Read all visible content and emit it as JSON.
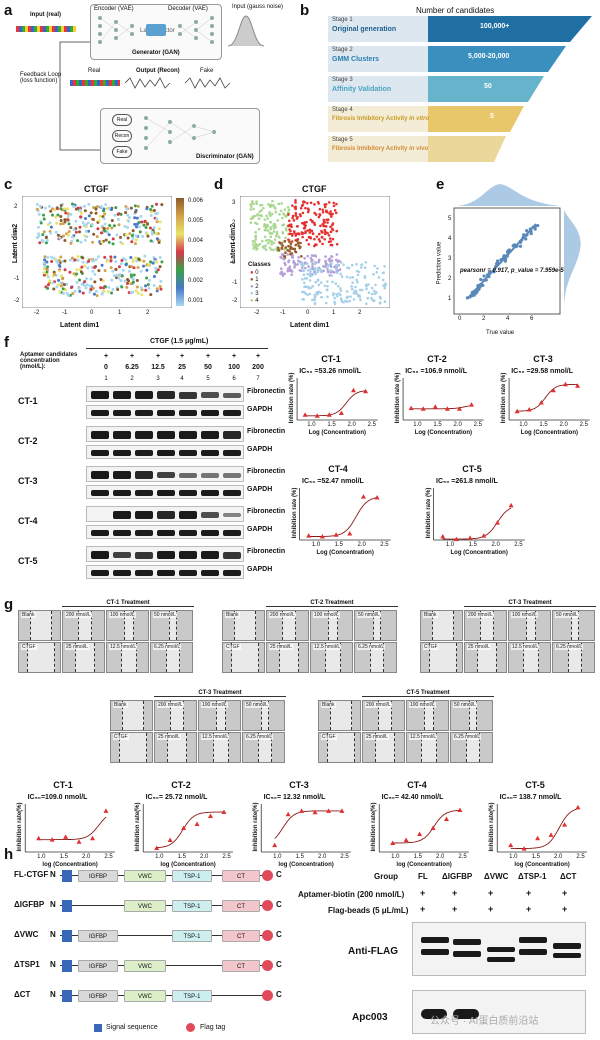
{
  "panels": {
    "a": "a",
    "b": "b",
    "c": "c",
    "d": "d",
    "e": "e",
    "f": "f",
    "g": "g",
    "h": "h"
  },
  "panel_a": {
    "input_real": "Input (real)",
    "encoder": "Encoder (VAE)",
    "decoder": "Decoder (VAE)",
    "input_noise": "Input (gauss noise)",
    "latent": "Latent vector",
    "generator": "Generator (GAN)",
    "feedback": "Feedback Loop (loss function)",
    "real": "Real",
    "output": "Output (Recon)",
    "fake": "Fake",
    "disc_real": "Real",
    "disc_recon": "Recon",
    "disc_fake": "Fake",
    "discriminator": "Discriminator (GAN)"
  },
  "panel_b": {
    "header": "Number of candidates",
    "stages": [
      {
        "stage": "Stage 1",
        "name": "Original generation",
        "count": "100,000+",
        "color": "#1f6fa3"
      },
      {
        "stage": "Stage 2",
        "name": "GMM Clusters",
        "count": "5,000-20,000",
        "color": "#3a8fbf"
      },
      {
        "stage": "Stage 3",
        "name": "Affinity Validation",
        "count": "50",
        "color": "#66b3cc"
      },
      {
        "stage": "Stage 4",
        "name": "Fibrosis Inhibitory Activity",
        "italic": "in vitro",
        "count": "5",
        "color": "#e8c76a"
      },
      {
        "stage": "Stage 5",
        "name": "Fibrosis Inhibitory Activity",
        "italic": "in vivo",
        "count": "",
        "color": "#ecd79a"
      }
    ]
  },
  "panel_c": {
    "title": "CTGF",
    "xlabel": "Latent dim1",
    "ylabel": "Latent dim2",
    "colorbar": [
      "0.006",
      "0.005",
      "0.004",
      "0.003",
      "0.002",
      "0.001"
    ],
    "xticks": [
      "-2",
      "-1",
      "0",
      "1",
      "2"
    ],
    "yticks": [
      "2",
      "1",
      "0",
      "-1",
      "-2"
    ]
  },
  "panel_d": {
    "title": "CTGF",
    "xlabel": "Latent dim1",
    "ylabel": "Latent dim2",
    "legend_title": "Classes",
    "classes": [
      "0",
      "1",
      "2",
      "3",
      "4"
    ],
    "xticks": [
      "-2",
      "-1",
      "0",
      "1",
      "2"
    ],
    "yticks": [
      "3",
      "2",
      "1",
      "0",
      "-1",
      "-2"
    ]
  },
  "panel_e": {
    "xlabel": "True value",
    "ylabel": "Prediction value",
    "annotation": "pearsonr = 0.917, p_value = 7.959e-5",
    "xticks": [
      "0",
      "2",
      "4",
      "6"
    ],
    "yticks": [
      "1",
      "2",
      "3",
      "4",
      "5"
    ]
  },
  "panel_f": {
    "treatment": "CTGF (1.5 μg/mL)",
    "conc_label": "Aptamer candidates concentration (nmol/L):",
    "plus": [
      "+",
      "+",
      "+",
      "+",
      "+",
      "+",
      "+"
    ],
    "concentrations": [
      "0",
      "6.25",
      "12.5",
      "25",
      "50",
      "100",
      "200"
    ],
    "lanes": [
      "1",
      "2",
      "3",
      "4",
      "5",
      "6",
      "7"
    ],
    "rows": [
      {
        "name": "CT-1",
        "fib": "Fibronectin",
        "gapdh": "GAPDH"
      },
      {
        "name": "CT-2",
        "fib": "Fibronectin",
        "gapdh": "GAPDH"
      },
      {
        "name": "CT-3",
        "fib": "Fibronectin",
        "gapdh": "GAPDH"
      },
      {
        "name": "CT-4",
        "fib": "Fibronectin",
        "gapdh": "GAPDH"
      },
      {
        "name": "CT-5",
        "fib": "Fibronectin",
        "gapdh": "GAPDH"
      }
    ]
  },
  "chart_data": [
    {
      "type": "scatter",
      "title": "CT-1",
      "ic50": "IC₅₀ =53.26 nmol/L",
      "xlabel": "Log (Concentration)",
      "ylabel": "Inhibition rate (%)",
      "x": [
        0.8,
        1.1,
        1.4,
        1.7,
        2.0,
        2.3
      ],
      "y": [
        -5,
        -8,
        -5,
        0,
        65,
        62
      ],
      "xlim": [
        0.6,
        2.6
      ],
      "ylim": [
        -20,
        100
      ],
      "fit": "sigmoid",
      "xticks": [
        "1.0",
        "1.5",
        "2.0",
        "2.5"
      ]
    },
    {
      "type": "scatter",
      "title": "CT-2",
      "ic50": "IC₅₀ =106.9 nmol/L",
      "xlabel": "Log (Concentration)",
      "ylabel": "Inhibition rate (%)",
      "x": [
        0.8,
        1.1,
        1.4,
        1.7,
        2.0,
        2.3
      ],
      "y": [
        14,
        12,
        18,
        12,
        12,
        24
      ],
      "xlim": [
        0.6,
        2.6
      ],
      "ylim": [
        -20,
        100
      ],
      "fit": "sigmoid",
      "xticks": [
        "1.0",
        "1.5",
        "2.0",
        "2.5"
      ]
    },
    {
      "type": "scatter",
      "title": "CT-3",
      "ic50": "IC₅₀ =29.58 nmol/L",
      "xlabel": "Log (Concentration)",
      "ylabel": "Inhibition rate (%)",
      "x": [
        0.8,
        1.1,
        1.4,
        1.7,
        2.0,
        2.3
      ],
      "y": [
        5,
        10,
        30,
        65,
        82,
        78
      ],
      "xlim": [
        0.6,
        2.6
      ],
      "ylim": [
        -20,
        100
      ],
      "fit": "sigmoid",
      "xticks": [
        "1.0",
        "1.5",
        "2.0",
        "2.5"
      ]
    },
    {
      "type": "scatter",
      "title": "CT-4",
      "ic50": "IC₅₀ =52.47 nmol/L",
      "xlabel": "Log (Concentration)",
      "ylabel": "Inhibition rate (%)",
      "x": [
        0.8,
        1.1,
        1.4,
        1.7,
        2.0,
        2.3
      ],
      "y": [
        -10,
        -12,
        -8,
        -5,
        80,
        78
      ],
      "xlim": [
        0.6,
        2.6
      ],
      "ylim": [
        -20,
        100
      ],
      "fit": "sigmoid",
      "xticks": [
        "1.0",
        "1.5",
        "2.0",
        "2.5"
      ]
    },
    {
      "type": "scatter",
      "title": "CT-5",
      "ic50": "IC₅₀ =261.8 nmol/L",
      "xlabel": "Log (Concentration)",
      "ylabel": "Inhibition rate (%)",
      "x": [
        0.8,
        1.1,
        1.4,
        1.7,
        2.0,
        2.3
      ],
      "y": [
        -12,
        -18,
        -15,
        -10,
        20,
        60
      ],
      "xlim": [
        0.6,
        2.6
      ],
      "ylim": [
        -20,
        100
      ],
      "fit": "sigmoid",
      "xticks": [
        "1.0",
        "1.5",
        "2.0",
        "2.5"
      ]
    },
    {
      "type": "scatter",
      "title": "CT-1",
      "ic50": "IC₅₀=109.0 nmol/L",
      "xlabel": "log (Concentration)",
      "ylabel": "Inhibition rate(%)",
      "x": [
        0.9,
        1.2,
        1.5,
        1.8,
        2.1,
        2.4
      ],
      "y": [
        20,
        18,
        22,
        15,
        20,
        60
      ],
      "xlim": [
        0.6,
        2.6
      ],
      "ylim": [
        0,
        70
      ],
      "fit": "sigmoid",
      "xticks": [
        "1.0",
        "1.5",
        "2.0",
        "2.5"
      ]
    },
    {
      "type": "scatter",
      "title": "CT-2",
      "ic50": "IC₅₀= 25.72 nmol/L",
      "xlabel": "log (Concentration)",
      "ylabel": "Inhibition rate(%)",
      "x": [
        0.9,
        1.2,
        1.5,
        1.8,
        2.1,
        2.4
      ],
      "y": [
        5,
        15,
        30,
        35,
        45,
        50
      ],
      "xlim": [
        0.6,
        2.6
      ],
      "ylim": [
        0,
        60
      ],
      "fit": "sigmoid",
      "xticks": [
        "1.0",
        "1.5",
        "2.0",
        "2.5"
      ]
    },
    {
      "type": "scatter",
      "title": "CT-3",
      "ic50": "IC₅₀= 12.32 nmol/L",
      "xlabel": "log (Concentration)",
      "ylabel": "Inhibition rate(%)",
      "x": [
        0.9,
        1.2,
        1.5,
        1.8,
        2.1,
        2.4
      ],
      "y": [
        10,
        55,
        60,
        58,
        60,
        60
      ],
      "xlim": [
        0.6,
        2.6
      ],
      "ylim": [
        0,
        70
      ],
      "fit": "sigmoid",
      "xticks": [
        "1.0",
        "1.5",
        "2.0",
        "2.5"
      ]
    },
    {
      "type": "scatter",
      "title": "CT-4",
      "ic50": "IC₅₀= 42.40 nmol/L",
      "xlabel": "log (Concentration)",
      "ylabel": "Inhibition rate(%)",
      "x": [
        0.9,
        1.2,
        1.5,
        1.8,
        2.1,
        2.4
      ],
      "y": [
        15,
        20,
        30,
        40,
        55,
        70
      ],
      "xlim": [
        0.6,
        2.6
      ],
      "ylim": [
        0,
        80
      ],
      "fit": "sigmoid",
      "xticks": [
        "1.0",
        "1.5",
        "2.0",
        "2.5"
      ]
    },
    {
      "type": "scatter",
      "title": "CT-5",
      "ic50": "IC₅₀= 138.7 nmol/L",
      "xlabel": "log (Concentration)",
      "ylabel": "Inhibition rate(%)",
      "x": [
        0.9,
        1.2,
        1.5,
        1.8,
        2.1,
        2.4
      ],
      "y": [
        10,
        5,
        20,
        25,
        40,
        65
      ],
      "xlim": [
        0.6,
        2.6
      ],
      "ylim": [
        0,
        70
      ],
      "fit": "sigmoid",
      "xticks": [
        "1.0",
        "1.5",
        "2.0",
        "2.5"
      ]
    }
  ],
  "panel_g": {
    "treatments": [
      "CT-1 Treatment",
      "CT-2 Treatment",
      "CT-3 Treatment",
      "CT-3 Treatment",
      "CT-5 Treatment"
    ],
    "top": [
      "Blank",
      "200 nmol/L",
      "100 nmol/L",
      "50 nmol/L"
    ],
    "bottom": [
      "CTGF",
      "25 nmol/L",
      "12.5 nmol/L",
      "6.25 nmol/L"
    ]
  },
  "panel_h": {
    "constructs": [
      {
        "name": "FL-CTGF"
      },
      {
        "name": "ΔIGFBP"
      },
      {
        "name": "ΔVWC"
      },
      {
        "name": "ΔTSP1"
      },
      {
        "name": "ΔCT"
      }
    ],
    "n": "N",
    "c": "C",
    "domains": {
      "igfbp": "IGFBP",
      "vwc": "VWC",
      "tsp": "TSP-1",
      "ct": "CT"
    },
    "legend_signal": "Signal sequence",
    "legend_flag": "Flag tag",
    "group_label": "Group",
    "groups": [
      "FL",
      "ΔIGFBP",
      "ΔVWC",
      "ΔTSP-1",
      "ΔCT"
    ],
    "row1": "Aptamer-biotin (200 nmol/L)",
    "row2": "Flag-beads (5 μL/mL)",
    "plus": "+",
    "blot1": "Anti-FLAG",
    "blot2": "Apc003",
    "watermark": "公众号 · AI蛋白质前沿站"
  }
}
